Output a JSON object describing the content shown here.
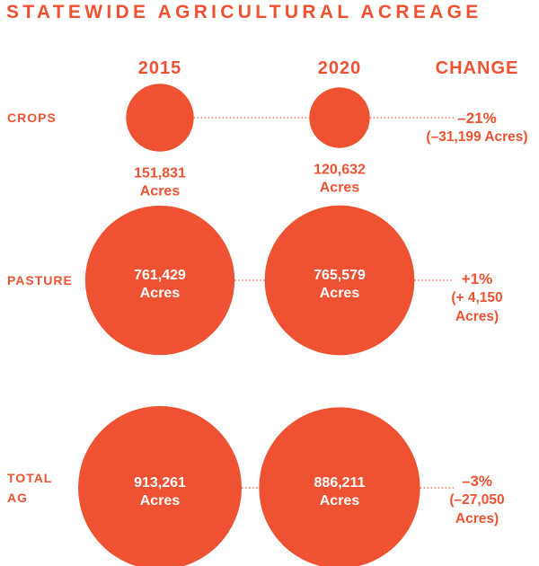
{
  "title": "STATEWIDE AGRICULTURAL ACREAGE",
  "columns": {
    "year_a": "2015",
    "year_b": "2020",
    "change": "CHANGE"
  },
  "colors": {
    "accent": "#ee5233",
    "circle_text": "#ffffff"
  },
  "chart_data": {
    "type": "bubble",
    "title": "STATEWIDE AGRICULTURAL ACREAGE",
    "categories": [
      "CROPS",
      "PASTURE",
      "TOTAL AG"
    ],
    "x": [
      "2015",
      "2020"
    ],
    "series": [
      {
        "name": "2015",
        "values": [
          151831,
          761429,
          913261
        ]
      },
      {
        "name": "2020",
        "values": [
          120632,
          765579,
          886211
        ]
      }
    ],
    "unit": "Acres",
    "rows": [
      {
        "label_lines": [
          "CROPS"
        ],
        "v2015": 151831,
        "v2020": 120632,
        "v2015_label": "151,831",
        "v2020_label": "120,632",
        "unit": "Acres",
        "change_pct": "–21%",
        "change_abs": "(–31,199 Acres)"
      },
      {
        "label_lines": [
          "PASTURE"
        ],
        "v2015": 761429,
        "v2020": 765579,
        "v2015_label": "761,429",
        "v2020_label": "765,579",
        "unit": "Acres",
        "change_pct": "+1%",
        "change_abs": "(+ 4,150 Acres)"
      },
      {
        "label_lines": [
          "TOTAL",
          "AG"
        ],
        "v2015": 913261,
        "v2020": 886211,
        "v2015_label": "913,261",
        "v2020_label": "886,211",
        "unit": "Acres",
        "change_pct": "–3%",
        "change_abs": "(–27,050 Acres)"
      }
    ]
  }
}
